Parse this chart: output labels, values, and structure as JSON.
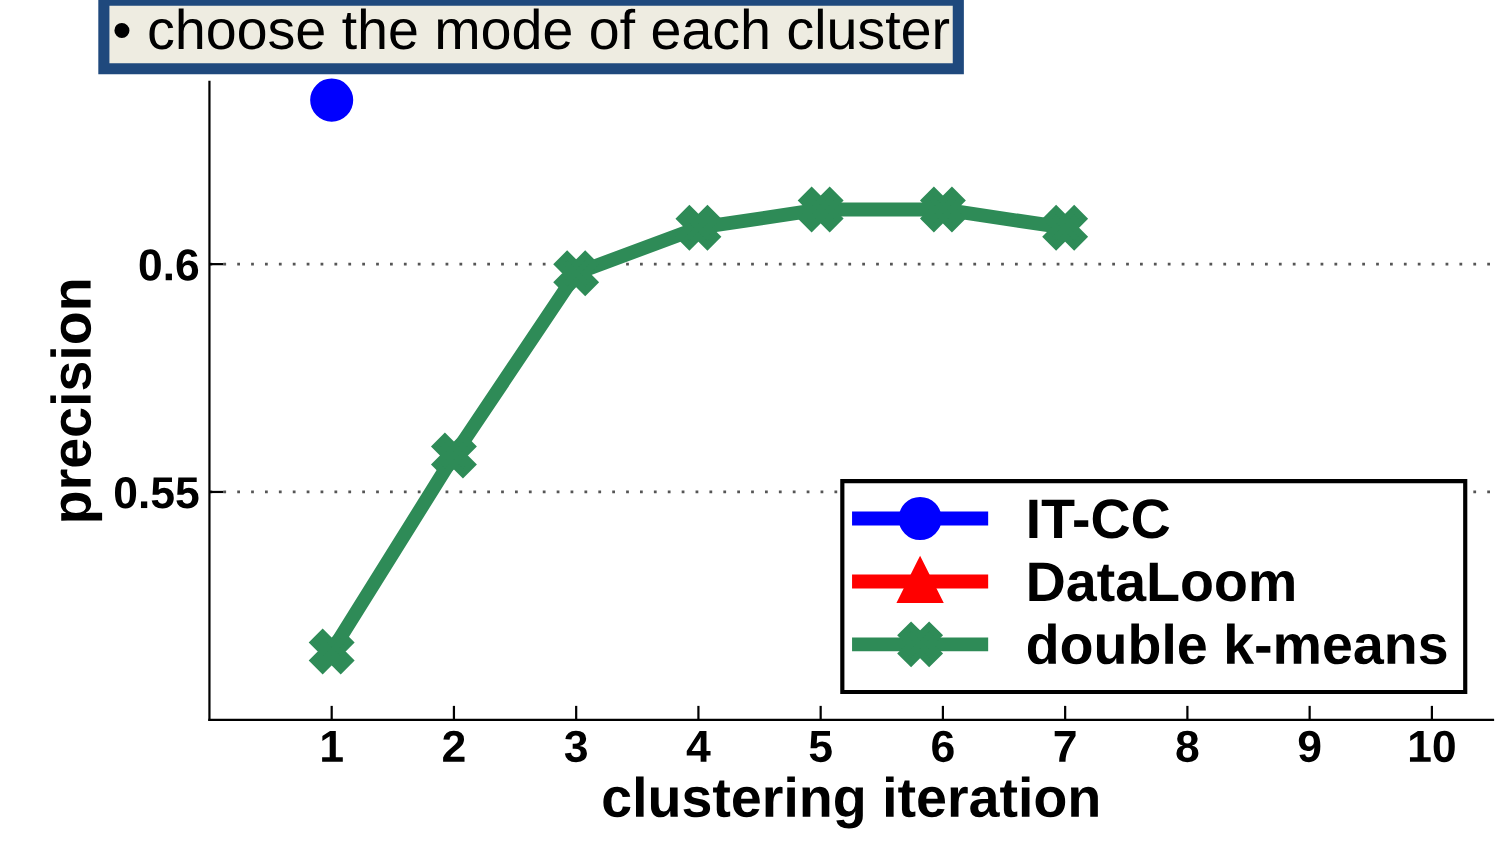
{
  "chart_data": {
    "type": "line",
    "xlabel": "clustering iteration",
    "ylabel": "precision",
    "x": [
      1,
      2,
      3,
      4,
      5,
      6,
      7
    ],
    "series": [
      {
        "name": "IT-CC",
        "color": "#0000ff",
        "marker": "circle",
        "values": [
          0.636,
          null,
          null,
          null,
          null,
          null,
          null
        ]
      },
      {
        "name": "DataLoom",
        "color": "#ff0000",
        "marker": "triangle",
        "values": [
          null,
          null,
          null,
          null,
          null,
          null,
          null
        ]
      },
      {
        "name": "double k-means",
        "color": "#2e8b57",
        "marker": "cross",
        "values": [
          0.515,
          0.558,
          0.598,
          0.608,
          0.612,
          0.612,
          0.608
        ]
      }
    ],
    "xlim": [
      0,
      10.5
    ],
    "xticks": [
      1,
      2,
      3,
      4,
      5,
      6,
      7,
      8,
      9,
      10
    ],
    "ylim": [
      0.5,
      0.64
    ],
    "yticks": [
      0.55,
      0.6
    ],
    "grid": "y",
    "legend": "bottom right",
    "annotations": [
      "• choose the mode of each cluster"
    ]
  }
}
